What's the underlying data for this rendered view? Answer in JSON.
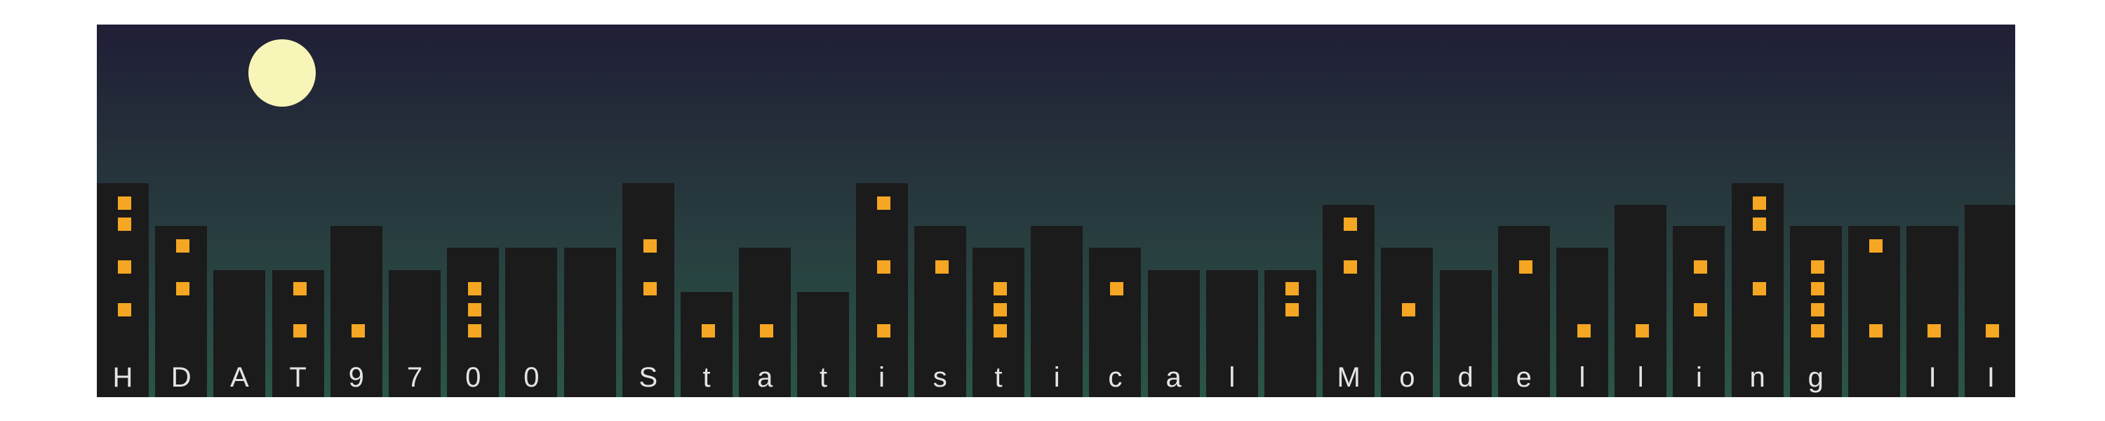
{
  "scene": {
    "title": "HDAT9700 Statistical Modelling II",
    "colors": {
      "sky_top": "#1f1e36",
      "sky_bottom": "#2b5548",
      "moon": "#f7f5b8",
      "building": "#1b1b1b",
      "window": "#f5a623",
      "letter": "#e4e4e4"
    }
  },
  "buildings": [
    {
      "letter": "H",
      "windows": 4
    },
    {
      "letter": "D",
      "windows": 2
    },
    {
      "letter": "A",
      "windows": 0
    },
    {
      "letter": "T",
      "windows": 2
    },
    {
      "letter": "9",
      "windows": 1
    },
    {
      "letter": "7",
      "windows": 0
    },
    {
      "letter": "0",
      "windows": 3
    },
    {
      "letter": "0",
      "windows": 0
    },
    {
      "letter": " ",
      "windows": 0
    },
    {
      "letter": "S",
      "windows": 2
    },
    {
      "letter": "t",
      "windows": 1
    },
    {
      "letter": "a",
      "windows": 1
    },
    {
      "letter": "t",
      "windows": 0
    },
    {
      "letter": "i",
      "windows": 3
    },
    {
      "letter": "s",
      "windows": 1
    },
    {
      "letter": "t",
      "windows": 3
    },
    {
      "letter": "i",
      "windows": 0
    },
    {
      "letter": "c",
      "windows": 1
    },
    {
      "letter": "a",
      "windows": 0
    },
    {
      "letter": "l",
      "windows": 0
    },
    {
      "letter": " ",
      "windows": 2
    },
    {
      "letter": "M",
      "windows": 2
    },
    {
      "letter": "o",
      "windows": 1
    },
    {
      "letter": "d",
      "windows": 0
    },
    {
      "letter": "e",
      "windows": 1
    },
    {
      "letter": "l",
      "windows": 1
    },
    {
      "letter": "l",
      "windows": 1
    },
    {
      "letter": "i",
      "windows": 2
    },
    {
      "letter": "n",
      "windows": 3
    },
    {
      "letter": "g",
      "windows": 4
    },
    {
      "letter": " ",
      "windows": 2
    },
    {
      "letter": "I",
      "windows": 1
    },
    {
      "letter": "I",
      "windows": 1
    }
  ]
}
